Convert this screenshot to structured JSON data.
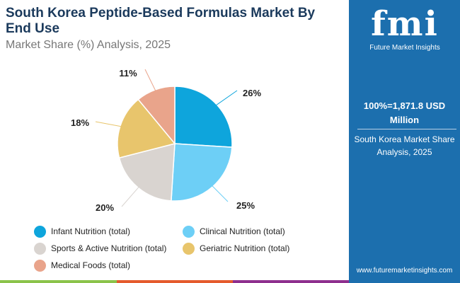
{
  "header": {
    "title": "South Korea Peptide-Based Formulas Market By End Use",
    "subtitle": "Market Share (%) Analysis, 2025"
  },
  "panel": {
    "logo_text": "fmi",
    "logo_name": "Future Market Insights",
    "total": "100%=1,871.8 USD Million",
    "description": "South Korea Market Share Analysis, 2025",
    "url": "www.futuremarketinsights.com",
    "background": "#1c6fae"
  },
  "chart_data": {
    "type": "pie",
    "start": "top",
    "direction": "clockwise",
    "categories": [
      "Infant Nutrition (total)",
      "Clinical Nutrition (total)",
      "Sports & Active Nutrition (total)",
      "Geriatric Nutrition (total)",
      "Medical Foods (total)"
    ],
    "values": [
      26,
      25,
      20,
      18,
      11
    ],
    "labels": [
      "26%",
      "25%",
      "20%",
      "18%",
      "11%"
    ],
    "colors": [
      "#0ea5dc",
      "#6dcff6",
      "#d9d4d0",
      "#e8c56c",
      "#e9a48b"
    ],
    "legend": "bottom"
  },
  "footer_colors": [
    "#8bc34a",
    "#e55b2d",
    "#8e2f8e"
  ]
}
